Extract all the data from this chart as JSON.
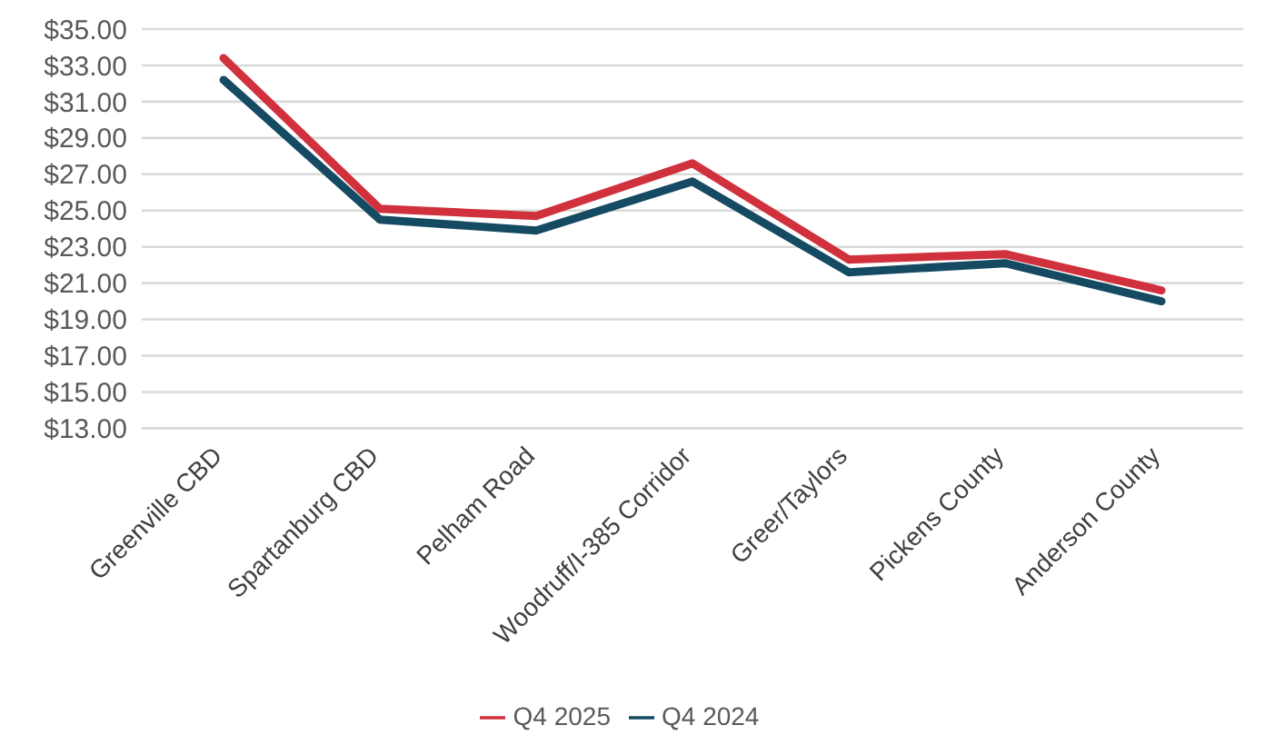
{
  "chart_data": {
    "type": "line",
    "categories": [
      "Greenville CBD",
      "Spartanburg CBD",
      "Pelham Road",
      "Woodruff/I-385 Corridor",
      "Greer/Taylors",
      "Pickens County",
      "Anderson County"
    ],
    "series": [
      {
        "name": "Q4 2025",
        "color": "#d0313d",
        "values": [
          33.4,
          25.1,
          24.7,
          27.6,
          22.3,
          22.6,
          20.6
        ]
      },
      {
        "name": "Q4 2024",
        "color": "#154a63",
        "values": [
          32.2,
          24.5,
          23.9,
          26.6,
          21.6,
          22.1,
          20.0
        ]
      }
    ],
    "ylim": [
      13,
      35
    ],
    "yticks": [
      {
        "value": 13,
        "label": "$13.00"
      },
      {
        "value": 15,
        "label": "$15.00"
      },
      {
        "value": 17,
        "label": "$17.00"
      },
      {
        "value": 19,
        "label": "$19.00"
      },
      {
        "value": 21,
        "label": "$21.00"
      },
      {
        "value": 23,
        "label": "$23.00"
      },
      {
        "value": 25,
        "label": "$25.00"
      },
      {
        "value": 27,
        "label": "$27.00"
      },
      {
        "value": 29,
        "label": "$29.00"
      },
      {
        "value": 31,
        "label": "$31.00"
      },
      {
        "value": 33,
        "label": "$33.00"
      },
      {
        "value": 35,
        "label": "$35.00"
      }
    ],
    "grid": "y",
    "legend": "bottom",
    "marker": "none",
    "line_style": "solid"
  }
}
